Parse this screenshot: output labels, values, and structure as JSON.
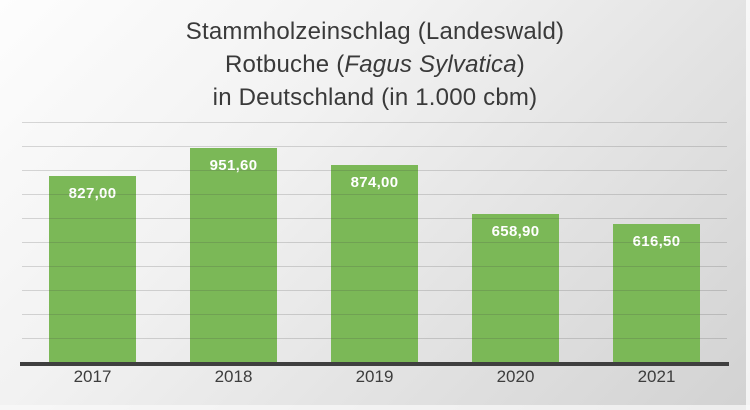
{
  "chart_data": {
    "type": "bar",
    "title": "Stammholzeinschlag (Landeswald) Rotbuche (Fagus Sylvatica) in Deutschland (in 1.000 cbm)",
    "title_lines": [
      "Stammholzeinschlag (Landeswald)",
      "Rotbuche (Fagus Sylvatica)",
      "in Deutschland (in 1.000 cbm)"
    ],
    "title_line2_parts": {
      "prefix": "Rotbuche (",
      "italic": "Fagus Sylvatica",
      "suffix": ")"
    },
    "categories": [
      "2017",
      "2018",
      "2019",
      "2020",
      "2021"
    ],
    "values": [
      827.0,
      951.6,
      874.0,
      658.9,
      616.5
    ],
    "value_labels": [
      "827,00",
      "951,60",
      "874,00",
      "658,90",
      "616,50"
    ],
    "value_unit": "1.000 cbm",
    "ylim": [
      0,
      1000
    ],
    "gridline_step": 100,
    "grid": "horizontal",
    "y_axis_tick_labels_visible": false,
    "legend_position": "none",
    "colors": {
      "bar": "#7bb857",
      "value_label": "#ffffff",
      "axis_line": "#3f3f3f",
      "tick_label": "#3d3d3d",
      "title": "#3a3a3a",
      "gridline": "#c6c6c6",
      "background_top": "#fdfdfd",
      "background_bottom": "#d2d2d2"
    }
  }
}
